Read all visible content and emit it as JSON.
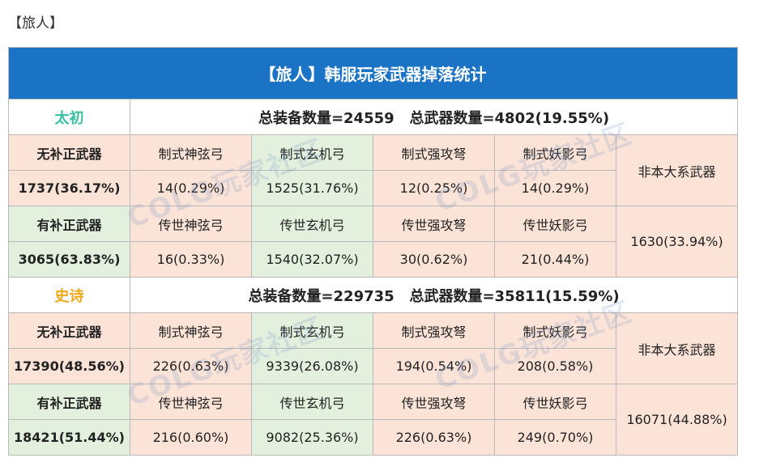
{
  "heading": "【旅人】",
  "table": {
    "title": "【旅人】韩服玩家武器掉落统计",
    "sections": [
      {
        "label": "太初",
        "label_color": "#3bbfa2",
        "summary": "总装备数量=24559   总武器数量=4802(19.55%)",
        "groups": [
          {
            "type_label": "无补正武器",
            "type_value": "1737(36.17%)",
            "weapons": [
              "制式神弦弓",
              "制式玄机弓",
              "制式强攻弩",
              "制式妖影弓"
            ],
            "values": [
              "14(0.29%)",
              "1525(31.76%)",
              "12(0.25%)",
              "14(0.29%)"
            ],
            "side": "非本大系武器"
          },
          {
            "type_label": "有补正武器",
            "type_value": "3065(63.83%)",
            "weapons": [
              "传世神弦弓",
              "传世玄机弓",
              "传世强攻弩",
              "传世妖影弓"
            ],
            "values": [
              "16(0.33%)",
              "1540(32.07%)",
              "30(0.62%)",
              "21(0.44%)"
            ],
            "side": "1630(33.94%)"
          }
        ]
      },
      {
        "label": "史诗",
        "label_color": "#f0a81a",
        "summary": "总装备数量=229735   总武器数量=35811(15.59%)",
        "groups": [
          {
            "type_label": "无补正武器",
            "type_value": "17390(48.56%)",
            "weapons": [
              "制式神弦弓",
              "制式玄机弓",
              "制式强攻弩",
              "制式妖影弓"
            ],
            "values": [
              "226(0.63%)",
              "9339(26.08%)",
              "194(0.54%)",
              "208(0.58%)"
            ],
            "side": "非本大系武器"
          },
          {
            "type_label": "有补正武器",
            "type_value": "18421(51.44%)",
            "weapons": [
              "传世神弦弓",
              "传世玄机弓",
              "传世强攻弩",
              "传世妖影弓"
            ],
            "values": [
              "216(0.60%)",
              "9082(25.36%)",
              "226(0.63%)",
              "249(0.70%)"
            ],
            "side": "16071(44.88%)"
          }
        ]
      }
    ]
  },
  "watermark": "COLG玩家社区"
}
